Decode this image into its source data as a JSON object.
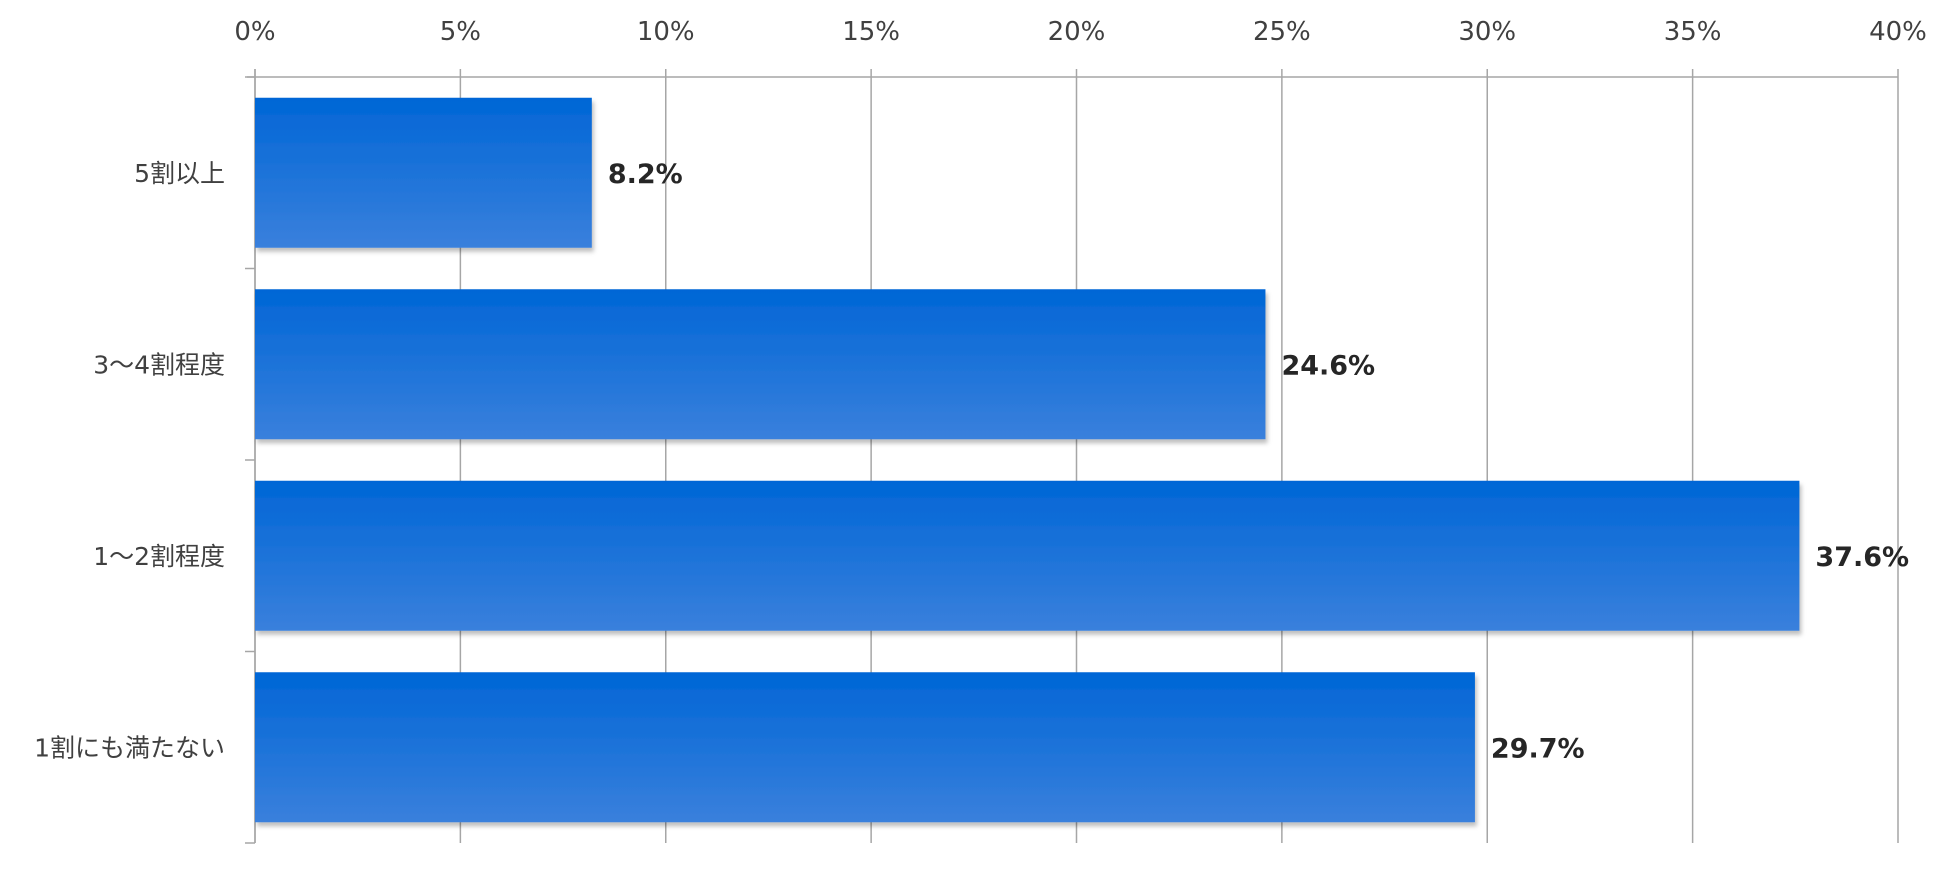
{
  "chart_data": {
    "type": "bar",
    "orientation": "horizontal",
    "categories": [
      "5割以上",
      "3～4割程度",
      "1～2割程度",
      "1割にも満たない"
    ],
    "values": [
      8.2,
      24.6,
      37.6,
      29.7
    ],
    "data_labels": [
      "8.2%",
      "24.6%",
      "37.6%",
      "29.7%"
    ],
    "xlim": [
      0,
      40
    ],
    "x_ticks": [
      0,
      5,
      10,
      15,
      20,
      25,
      30,
      35,
      40
    ],
    "x_tick_labels": [
      "0%",
      "5%",
      "10%",
      "15%",
      "20%",
      "25%",
      "30%",
      "35%",
      "40%"
    ],
    "x_axis_position": "top",
    "grid": true,
    "legend": "none",
    "bar_color_top": "#0066d6",
    "bar_color_bottom": "#3a80dc",
    "grid_color": "#a6a6a6"
  }
}
